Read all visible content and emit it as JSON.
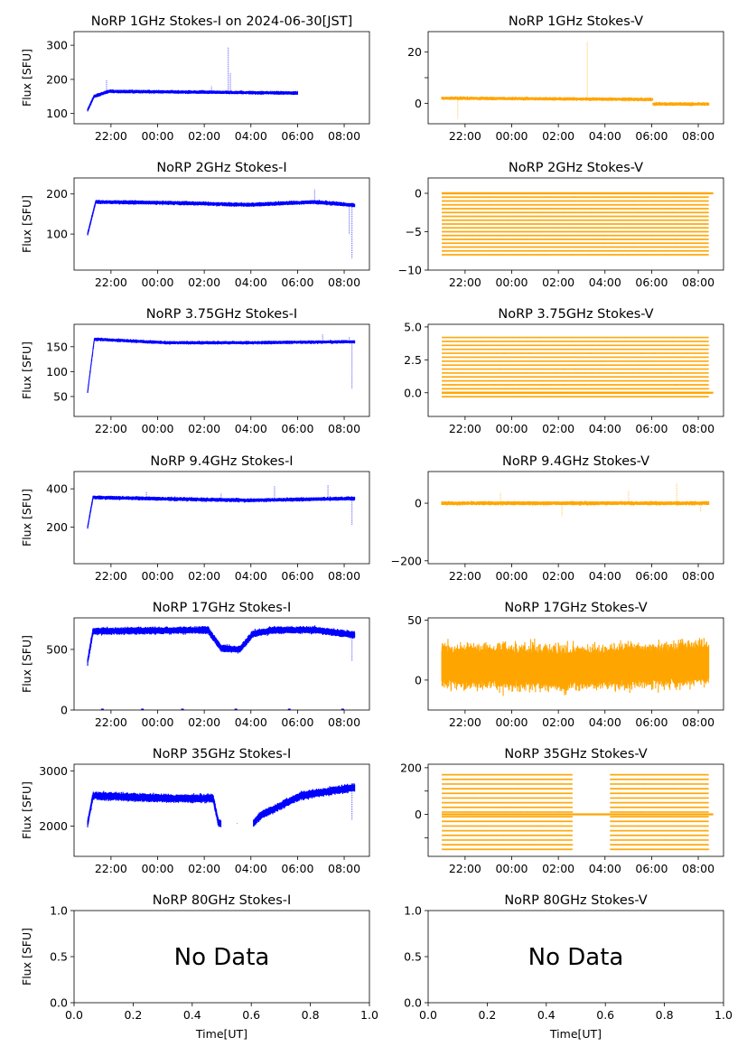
{
  "figure": {
    "xlabel": "Time[UT]",
    "ylabel": "Flux [SFU]",
    "colors": {
      "stokes_i": "#0000ff",
      "stokes_v": "#ffa500"
    },
    "time_ticks": [
      "22:00",
      "00:00",
      "02:00",
      "04:00",
      "06:00",
      "08:00"
    ],
    "time_range": [
      "2024-06-30T20:25",
      "2024-07-01T09:05"
    ],
    "data_span": [
      "2024-06-30T21:00",
      "2024-07-01T08:27"
    ]
  },
  "chart_data": [
    {
      "id": "i-1ghz",
      "type": "scatter",
      "title": "NoRP 1GHz Stokes-I on 2024-06-30[JST]",
      "ylabel": "Flux [SFU]",
      "ylim": [
        70,
        340
      ],
      "yticks": [
        100,
        200,
        300
      ],
      "x_start": "2024-06-30T21:00",
      "x_end": "2024-07-01T06:00",
      "series": [
        {
          "baseline": [
            [
              0,
              110
            ],
            [
              0.03,
              150
            ],
            [
              0.1,
              165
            ],
            [
              1,
              160
            ]
          ],
          "noise": 3,
          "spikes": [
            [
              0.09,
              200
            ],
            [
              0.59,
              180
            ],
            [
              0.67,
              295
            ],
            [
              0.68,
              220
            ]
          ]
        }
      ]
    },
    {
      "id": "v-1ghz",
      "type": "scatter",
      "title": "NoRP 1GHz Stokes-V",
      "ylim": [
        -8,
        28
      ],
      "yticks": [
        0,
        10,
        20
      ],
      "yticklabels": [
        "0",
        "",
        "20"
      ],
      "x_start": "2024-06-30T21:00",
      "x_end": "2024-07-01T08:27",
      "series": [
        {
          "baseline": [
            [
              0,
              2
            ],
            [
              0.79,
              1.5
            ],
            [
              0.79,
              -0.3
            ],
            [
              1,
              -0.3
            ]
          ],
          "noise": 0.4,
          "spikes": [
            [
              0.06,
              -6
            ],
            [
              0.545,
              24
            ]
          ]
        }
      ]
    },
    {
      "id": "i-2ghz",
      "type": "scatter",
      "title": "NoRP 2GHz Stokes-I",
      "ylabel": "Flux [SFU]",
      "ylim": [
        10,
        240
      ],
      "yticks": [
        100,
        200
      ],
      "x_start": "2024-06-30T21:00",
      "x_end": "2024-07-01T08:27",
      "series": [
        {
          "baseline": [
            [
              0,
              100
            ],
            [
              0.03,
              180
            ],
            [
              0.3,
              178
            ],
            [
              0.6,
              173
            ],
            [
              0.85,
              180
            ],
            [
              1,
              172
            ]
          ],
          "noise": 3,
          "spikes": [
            [
              0.85,
              212
            ],
            [
              0.98,
              100
            ],
            [
              0.99,
              40
            ]
          ]
        }
      ]
    },
    {
      "id": "v-2ghz",
      "type": "scatter",
      "title": "NoRP 2GHz Stokes-V",
      "ylim": [
        -10,
        2
      ],
      "yticks": [
        -10,
        -5,
        0
      ],
      "yticklabels": [
        "−10",
        "−5",
        "0"
      ],
      "x_start": "2024-06-30T21:00",
      "x_end": "2024-07-01T08:27",
      "quantized": {
        "levels": [
          -8,
          -7.5,
          -7,
          -6.5,
          -6,
          -5.5,
          -5,
          -4.5,
          -4,
          -3.5,
          -3,
          -2.5,
          -2,
          -1.5,
          -1,
          -0.5,
          0
        ]
      },
      "series": [
        {
          "baseline": [
            [
              0,
              0
            ],
            [
              1,
              0
            ]
          ],
          "noise": 0,
          "spikes": []
        }
      ]
    },
    {
      "id": "i-375ghz",
      "type": "scatter",
      "title": "NoRP 3.75GHz Stokes-I",
      "ylabel": "Flux [SFU]",
      "ylim": [
        10,
        195
      ],
      "yticks": [
        50,
        100,
        150
      ],
      "x_start": "2024-06-30T21:00",
      "x_end": "2024-07-01T08:27",
      "series": [
        {
          "baseline": [
            [
              0,
              60
            ],
            [
              0.025,
              165
            ],
            [
              0.3,
              158
            ],
            [
              0.6,
              158
            ],
            [
              1,
              160
            ]
          ],
          "noise": 2,
          "spikes": [
            [
              0.88,
              175
            ],
            [
              0.98,
              170
            ],
            [
              0.99,
              65
            ]
          ]
        }
      ]
    },
    {
      "id": "v-375ghz",
      "type": "scatter",
      "title": "NoRP 3.75GHz Stokes-V",
      "ylim": [
        -1.8,
        5.2
      ],
      "yticks": [
        0,
        2.5,
        5
      ],
      "yticklabels": [
        "0.0",
        "2.5",
        "5.0"
      ],
      "x_start": "2024-06-30T21:00",
      "x_end": "2024-07-01T08:27",
      "quantized": {
        "levels": [
          -0.3,
          0,
          0.3,
          0.6,
          0.9,
          1.2,
          1.5,
          1.8,
          2.1,
          2.4,
          2.7,
          3.0,
          3.3,
          3.6,
          3.9,
          4.2
        ]
      },
      "series": [
        {
          "baseline": [
            [
              0,
              0
            ],
            [
              1,
              0
            ]
          ],
          "noise": 0,
          "spikes": []
        }
      ]
    },
    {
      "id": "i-94ghz",
      "type": "scatter",
      "title": "NoRP 9.4GHz Stokes-I",
      "ylabel": "Flux [SFU]",
      "ylim": [
        10,
        490
      ],
      "yticks": [
        200,
        400
      ],
      "x_start": "2024-06-30T21:00",
      "x_end": "2024-07-01T08:27",
      "series": [
        {
          "baseline": [
            [
              0,
              200
            ],
            [
              0.02,
              355
            ],
            [
              0.4,
              345
            ],
            [
              0.6,
              340
            ],
            [
              1,
              350
            ]
          ],
          "noise": 6,
          "spikes": [
            [
              0.22,
              385
            ],
            [
              0.5,
              375
            ],
            [
              0.7,
              415
            ],
            [
              0.9,
              420
            ],
            [
              0.99,
              210
            ]
          ]
        }
      ]
    },
    {
      "id": "v-94ghz",
      "type": "scatter",
      "title": "NoRP 9.4GHz Stokes-V",
      "ylim": [
        -210,
        110
      ],
      "yticks": [
        -200,
        0
      ],
      "yticklabels": [
        "−200",
        "0"
      ],
      "x_start": "2024-06-30T21:00",
      "x_end": "2024-07-01T08:27",
      "series": [
        {
          "baseline": [
            [
              0,
              0
            ],
            [
              1,
              0
            ]
          ],
          "noise": 4,
          "spikes": [
            [
              0.22,
              35
            ],
            [
              0.45,
              -45
            ],
            [
              0.7,
              45
            ],
            [
              0.88,
              70
            ],
            [
              0.97,
              -30
            ]
          ]
        }
      ]
    },
    {
      "id": "i-17ghz",
      "type": "scatter",
      "title": "NoRP 17GHz Stokes-I",
      "ylabel": "Flux [SFU]",
      "ylim": [
        0,
        760
      ],
      "yticks": [
        0,
        500
      ],
      "x_start": "2024-06-30T21:00",
      "x_end": "2024-07-01T08:27",
      "series": [
        {
          "baseline": [
            [
              0,
              400
            ],
            [
              0.02,
              650
            ],
            [
              0.45,
              660
            ],
            [
              0.5,
              510
            ],
            [
              0.57,
              500
            ],
            [
              0.62,
              630
            ],
            [
              0.7,
              660
            ],
            [
              0.85,
              660
            ],
            [
              1,
              620
            ]
          ],
          "noise": 18,
          "spikes": [
            [
              0.99,
              400
            ]
          ]
        }
      ]
    },
    {
      "id": "v-17ghz",
      "type": "scatter",
      "title": "NoRP 17GHz Stokes-V",
      "ylim": [
        -25,
        52
      ],
      "yticks": [
        0,
        50
      ],
      "x_start": "2024-06-30T21:00",
      "x_end": "2024-07-01T08:27",
      "series": [
        {
          "baseline": [
            [
              0,
              12
            ],
            [
              0.5,
              10
            ],
            [
              1,
              14
            ]
          ],
          "noise": 11,
          "spikes": []
        }
      ]
    },
    {
      "id": "i-35ghz",
      "type": "scatter",
      "title": "NoRP 35GHz Stokes-I",
      "ylabel": "Flux [SFU]",
      "ylim": [
        1450,
        3120
      ],
      "yticks": [
        2000,
        3000
      ],
      "x_start": "2024-06-30T21:00",
      "x_end": "2024-07-01T08:27",
      "series": [
        {
          "baseline": [
            [
              0,
              2050
            ],
            [
              0.02,
              2550
            ],
            [
              0.3,
              2500
            ],
            [
              0.47,
              2500
            ],
            [
              0.49,
              2050
            ],
            [
              0.62,
              2050
            ],
            [
              0.65,
              2200
            ],
            [
              0.8,
              2550
            ],
            [
              1,
              2700
            ]
          ],
          "noise": 45,
          "gaps": [
            [
              0.5,
              0.62
            ]
          ],
          "spikes": [
            [
              0.56,
              2040
            ],
            [
              0.99,
              2100
            ]
          ]
        }
      ]
    },
    {
      "id": "v-35ghz",
      "type": "scatter",
      "title": "NoRP 35GHz Stokes-V",
      "ylim": [
        -180,
        215
      ],
      "yticks": [
        -100,
        0,
        100,
        200
      ],
      "yticklabels": [
        "",
        "0",
        "",
        "200"
      ],
      "x_start": "2024-06-30T21:00",
      "x_end": "2024-07-01T08:27",
      "quantized": {
        "levels": [
          -150,
          -130,
          -110,
          -90,
          -70,
          -50,
          -30,
          -10,
          10,
          30,
          50,
          70,
          90,
          110,
          130,
          150,
          170
        ],
        "gaps": [
          [
            0.49,
            0.63
          ]
        ]
      },
      "series": [
        {
          "baseline": [
            [
              0,
              0
            ],
            [
              1,
              0
            ]
          ],
          "noise": 0,
          "spikes": []
        }
      ]
    },
    {
      "id": "i-80ghz",
      "type": "scatter",
      "title": "NoRP 80GHz Stokes-I",
      "ylabel": "Flux [SFU]",
      "xlabel": "Time[UT]",
      "no_data": "No Data",
      "xlim": [
        0,
        1
      ],
      "ylim": [
        0,
        1
      ],
      "xticks": [
        "0.0",
        "0.2",
        "0.4",
        "0.6",
        "0.8",
        "1.0"
      ],
      "yticks": [
        "0.0",
        "0.5",
        "1.0"
      ]
    },
    {
      "id": "v-80ghz",
      "type": "scatter",
      "title": "NoRP 80GHz Stokes-V",
      "xlabel": "Time[UT]",
      "no_data": "No Data",
      "xlim": [
        0,
        1
      ],
      "ylim": [
        0,
        1
      ],
      "xticks": [
        "0.0",
        "0.2",
        "0.4",
        "0.6",
        "0.8",
        "1.0"
      ],
      "yticks": [
        "0.0",
        "0.5",
        "1.0"
      ]
    }
  ]
}
